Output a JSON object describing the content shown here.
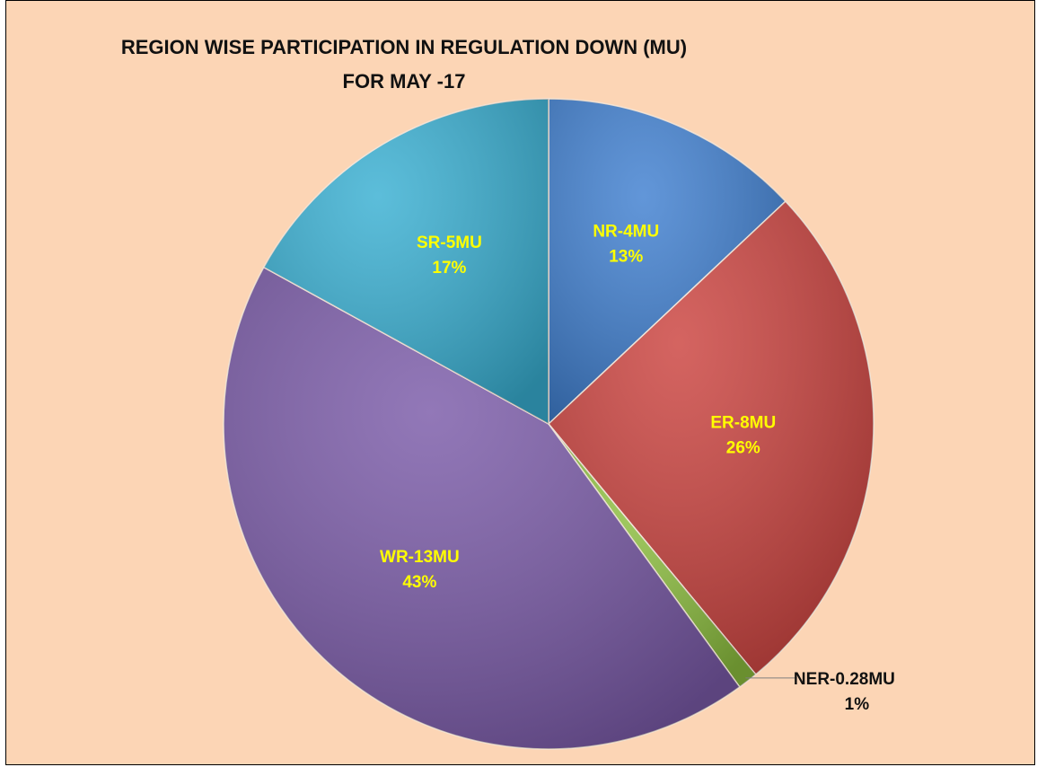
{
  "chart_data": {
    "type": "pie",
    "title": "REGION WISE PARTICIPATION IN REGULATION DOWN (MU) FOR MAY -17",
    "categories": [
      "NR-4MU",
      "ER-8MU",
      "NER-0.28MU",
      "WR-13MU",
      "SR-5MU"
    ],
    "values": [
      13,
      26,
      1,
      43,
      17
    ],
    "value_labels": [
      "13%",
      "26%",
      "1%",
      "43%",
      "17%"
    ],
    "colors": [
      "#3f7fd0",
      "#cb423e",
      "#8dbf3f",
      "#7a5aa8",
      "#38afd2"
    ]
  }
}
